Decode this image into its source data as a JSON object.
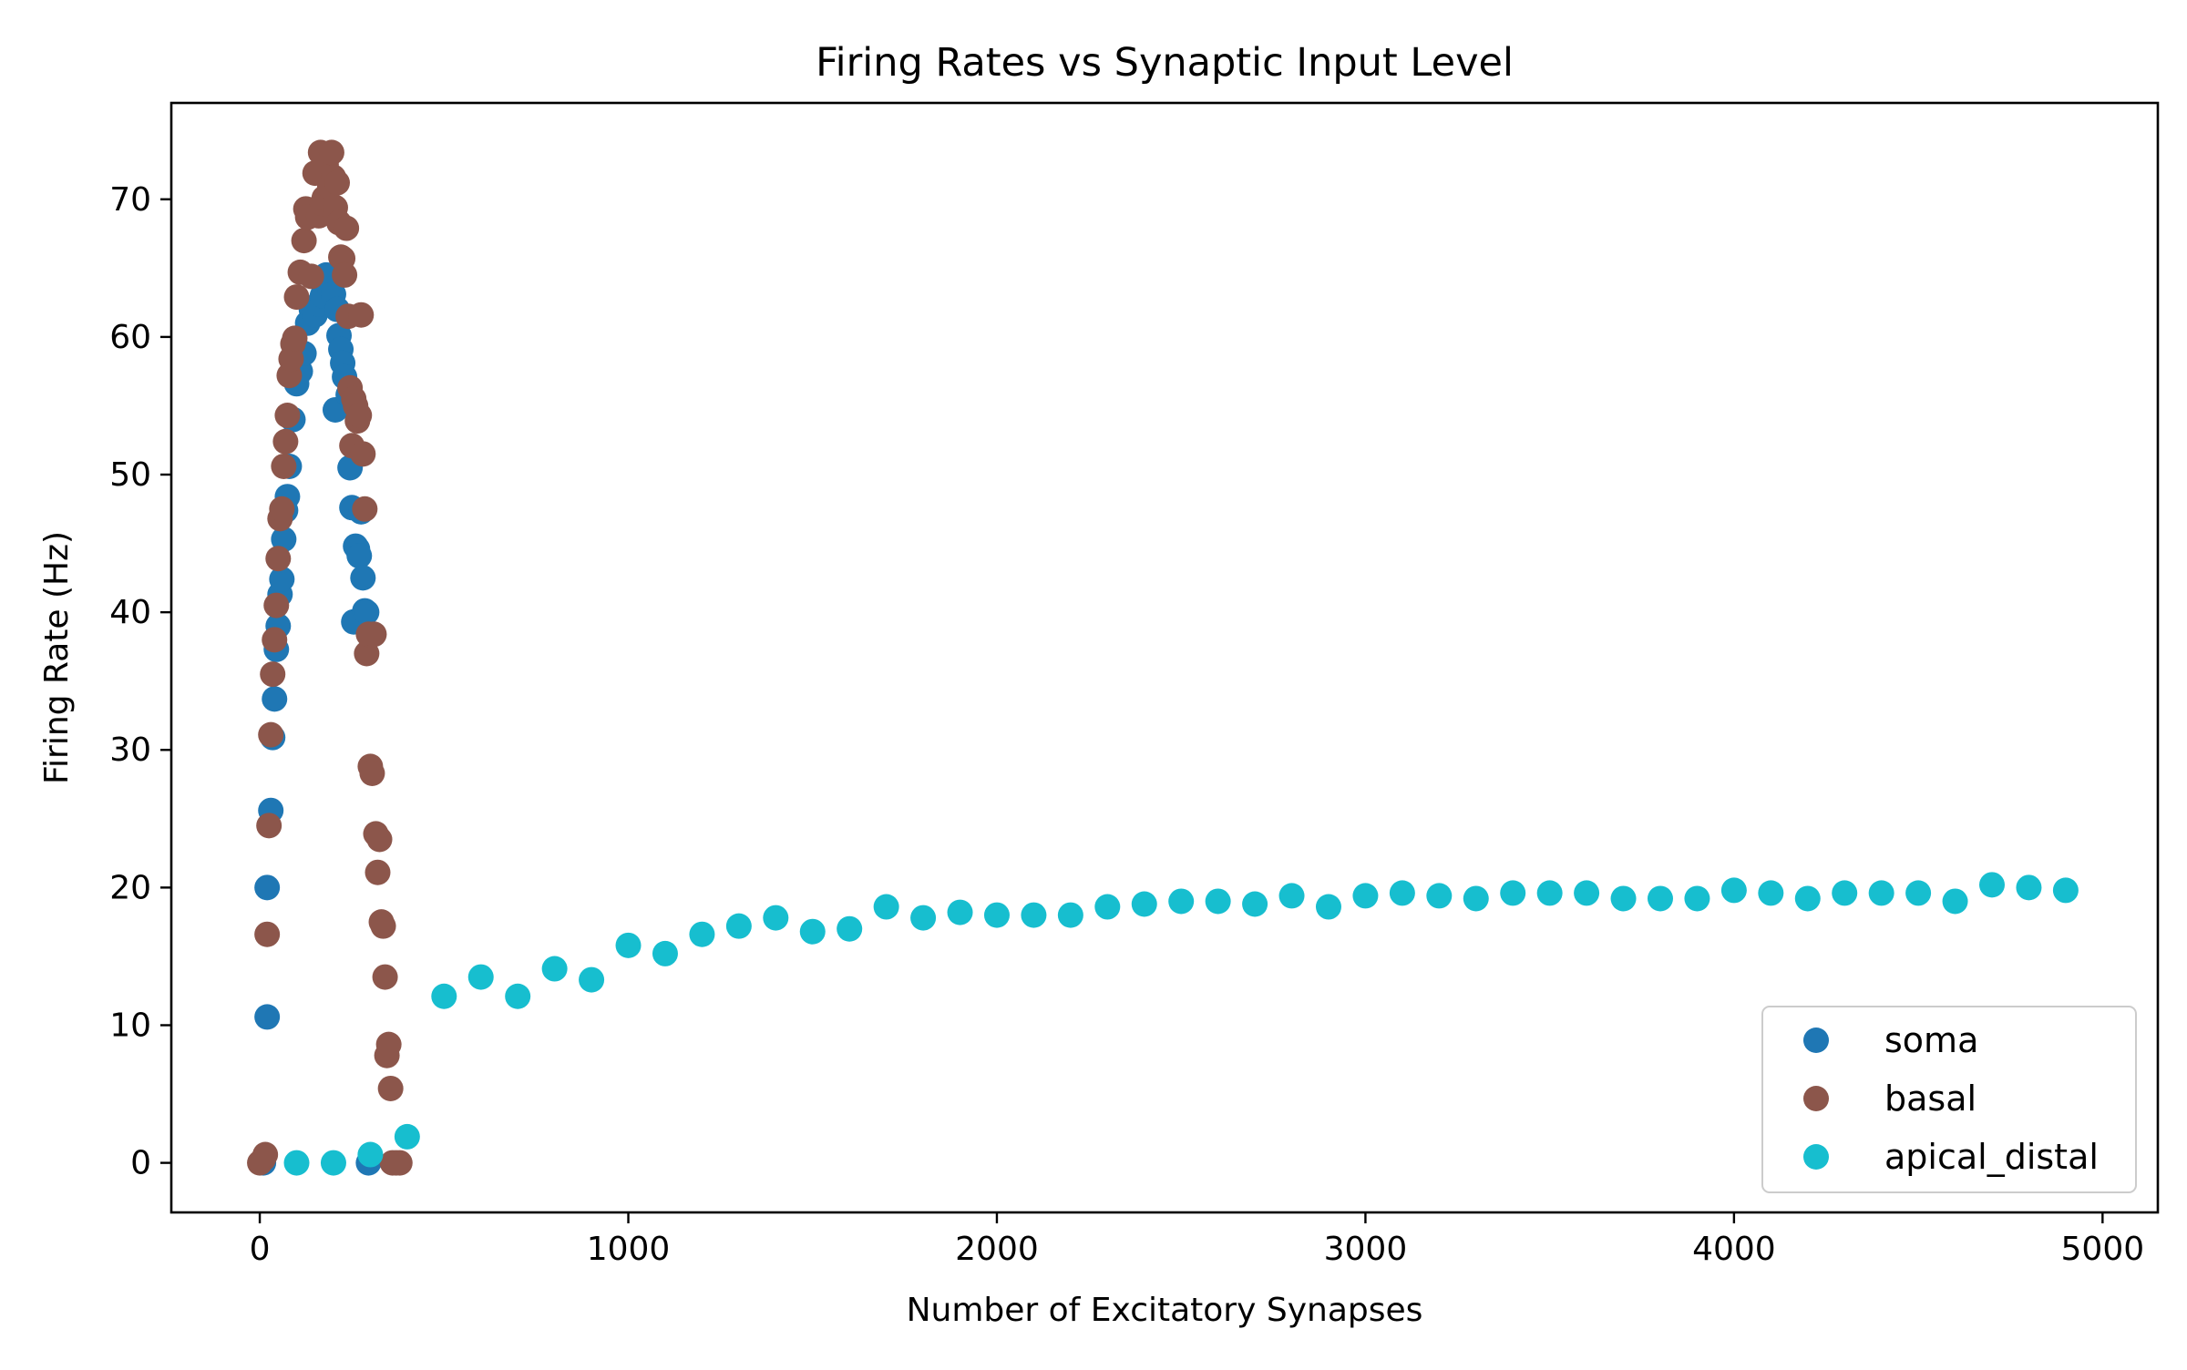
{
  "chart_data": {
    "type": "scatter",
    "title": "Firing Rates vs Synaptic Input Level",
    "xlabel": "Number of Excitatory Synapses",
    "ylabel": "Firing Rate (Hz)",
    "xlim": [
      -240,
      5150
    ],
    "ylim": [
      -3.6,
      77.0
    ],
    "xticks": [
      0,
      1000,
      2000,
      3000,
      4000,
      5000
    ],
    "xtick_labels": [
      "0",
      "1000",
      "2000",
      "3000",
      "4000",
      "5000"
    ],
    "yticks": [
      0,
      10,
      20,
      30,
      40,
      50,
      60,
      70
    ],
    "ytick_labels": [
      "0",
      "10",
      "20",
      "30",
      "40",
      "50",
      "60",
      "70"
    ],
    "grid": false,
    "legend_position": "lower-right",
    "series": [
      {
        "name": "soma",
        "color": "#1f77b4",
        "x": [
          10,
          20,
          20,
          30,
          35,
          40,
          45,
          50,
          55,
          60,
          65,
          70,
          75,
          80,
          90,
          100,
          110,
          120,
          130,
          140,
          150,
          160,
          170,
          180,
          190,
          200,
          205,
          210,
          215,
          220,
          225,
          230,
          240,
          245,
          250,
          255,
          260,
          265,
          270,
          275,
          280,
          285,
          290,
          295
        ],
        "y": [
          0.0,
          10.6,
          20.0,
          25.6,
          30.9,
          33.7,
          37.3,
          39.0,
          41.3,
          42.4,
          45.3,
          47.4,
          48.4,
          50.6,
          54.0,
          56.6,
          57.5,
          58.8,
          61.0,
          62.0,
          61.6,
          62.4,
          63.0,
          64.5,
          63.5,
          63.1,
          54.7,
          62.0,
          60.1,
          59.1,
          58.1,
          57.1,
          55.8,
          50.5,
          47.6,
          39.3,
          44.8,
          44.6,
          44.1,
          47.3,
          42.5,
          40.1,
          40.0,
          0.0
        ]
      },
      {
        "name": "basal",
        "color": "#8c564b",
        "x": [
          0,
          10,
          15,
          20,
          25,
          30,
          35,
          40,
          45,
          50,
          55,
          60,
          65,
          70,
          75,
          80,
          85,
          90,
          95,
          100,
          110,
          120,
          125,
          130,
          140,
          150,
          160,
          165,
          170,
          175,
          180,
          185,
          190,
          195,
          200,
          205,
          210,
          215,
          220,
          225,
          230,
          235,
          240,
          245,
          250,
          255,
          260,
          265,
          270,
          275,
          280,
          285,
          290,
          295,
          300,
          305,
          310,
          315,
          320,
          325,
          330,
          335,
          340,
          345,
          350,
          355,
          360,
          370,
          380
        ],
        "y": [
          0.0,
          0.3,
          0.6,
          16.6,
          24.5,
          31.1,
          35.5,
          38.0,
          40.5,
          43.9,
          46.8,
          47.5,
          50.6,
          52.4,
          54.3,
          57.2,
          58.4,
          59.5,
          59.9,
          62.9,
          64.7,
          67.0,
          69.3,
          68.7,
          64.4,
          71.9,
          68.8,
          73.4,
          69.7,
          70.1,
          72.5,
          71.6,
          70.9,
          73.4,
          71.6,
          69.4,
          71.2,
          68.3,
          65.8,
          65.7,
          64.5,
          67.9,
          61.5,
          56.3,
          52.1,
          55.5,
          55.0,
          53.9,
          54.3,
          61.6,
          51.5,
          47.5,
          37.0,
          38.4,
          28.8,
          28.3,
          38.4,
          23.9,
          21.1,
          23.5,
          17.5,
          17.2,
          13.5,
          7.8,
          8.6,
          5.4,
          0.0,
          0.0,
          0.0
        ]
      },
      {
        "name": "apical_distal",
        "color": "#17becf",
        "x": [
          100,
          200,
          300,
          400,
          500,
          600,
          700,
          800,
          900,
          1000,
          1100,
          1200,
          1300,
          1400,
          1500,
          1600,
          1700,
          1800,
          1900,
          2000,
          2100,
          2200,
          2300,
          2400,
          2500,
          2600,
          2700,
          2800,
          2900,
          3000,
          3100,
          3200,
          3300,
          3400,
          3500,
          3600,
          3700,
          3800,
          3900,
          4000,
          4100,
          4200,
          4300,
          4400,
          4500,
          4600,
          4700,
          4800,
          4900
        ],
        "y": [
          0.0,
          0.0,
          0.6,
          1.9,
          12.1,
          13.5,
          12.1,
          14.1,
          13.3,
          15.8,
          15.2,
          16.6,
          17.2,
          17.8,
          16.8,
          17.0,
          18.6,
          17.8,
          18.2,
          18.0,
          18.0,
          18.0,
          18.6,
          18.8,
          19.0,
          19.0,
          18.8,
          19.4,
          18.6,
          19.4,
          19.6,
          19.4,
          19.2,
          19.6,
          19.6,
          19.6,
          19.2,
          19.2,
          19.2,
          19.8,
          19.6,
          19.2,
          19.6,
          19.6,
          19.6,
          19.0,
          20.2,
          20.0,
          19.8
        ]
      }
    ]
  }
}
